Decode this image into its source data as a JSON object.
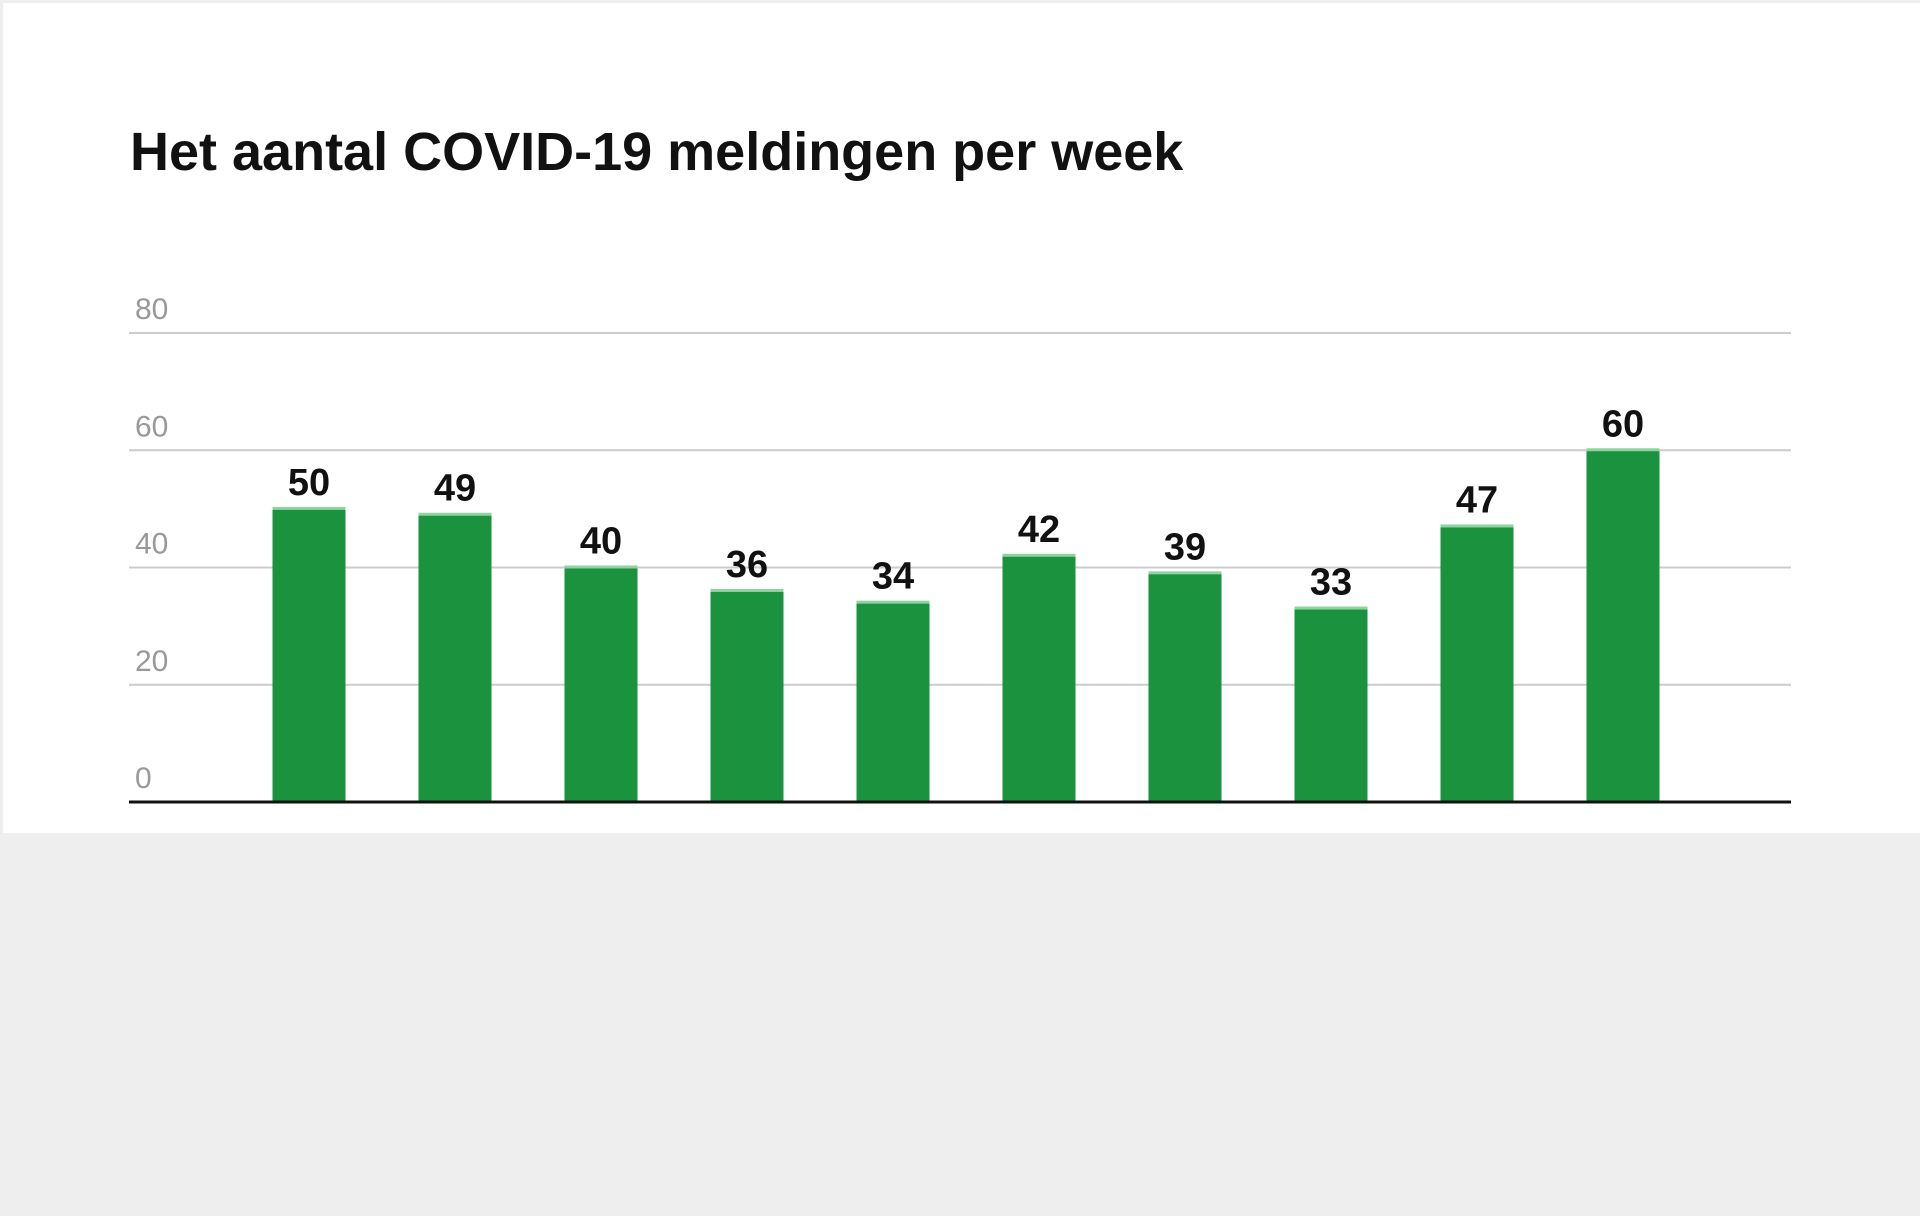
{
  "chart_data": {
    "type": "bar",
    "title": "Het aantal COVID-19 meldingen per week",
    "values": [
      50,
      49,
      40,
      36,
      34,
      42,
      39,
      33,
      47,
      60
    ],
    "color": "#1a923e",
    "ylim": [
      0,
      80
    ],
    "yticks": [
      0,
      20,
      40,
      60,
      80
    ],
    "grid": true
  }
}
